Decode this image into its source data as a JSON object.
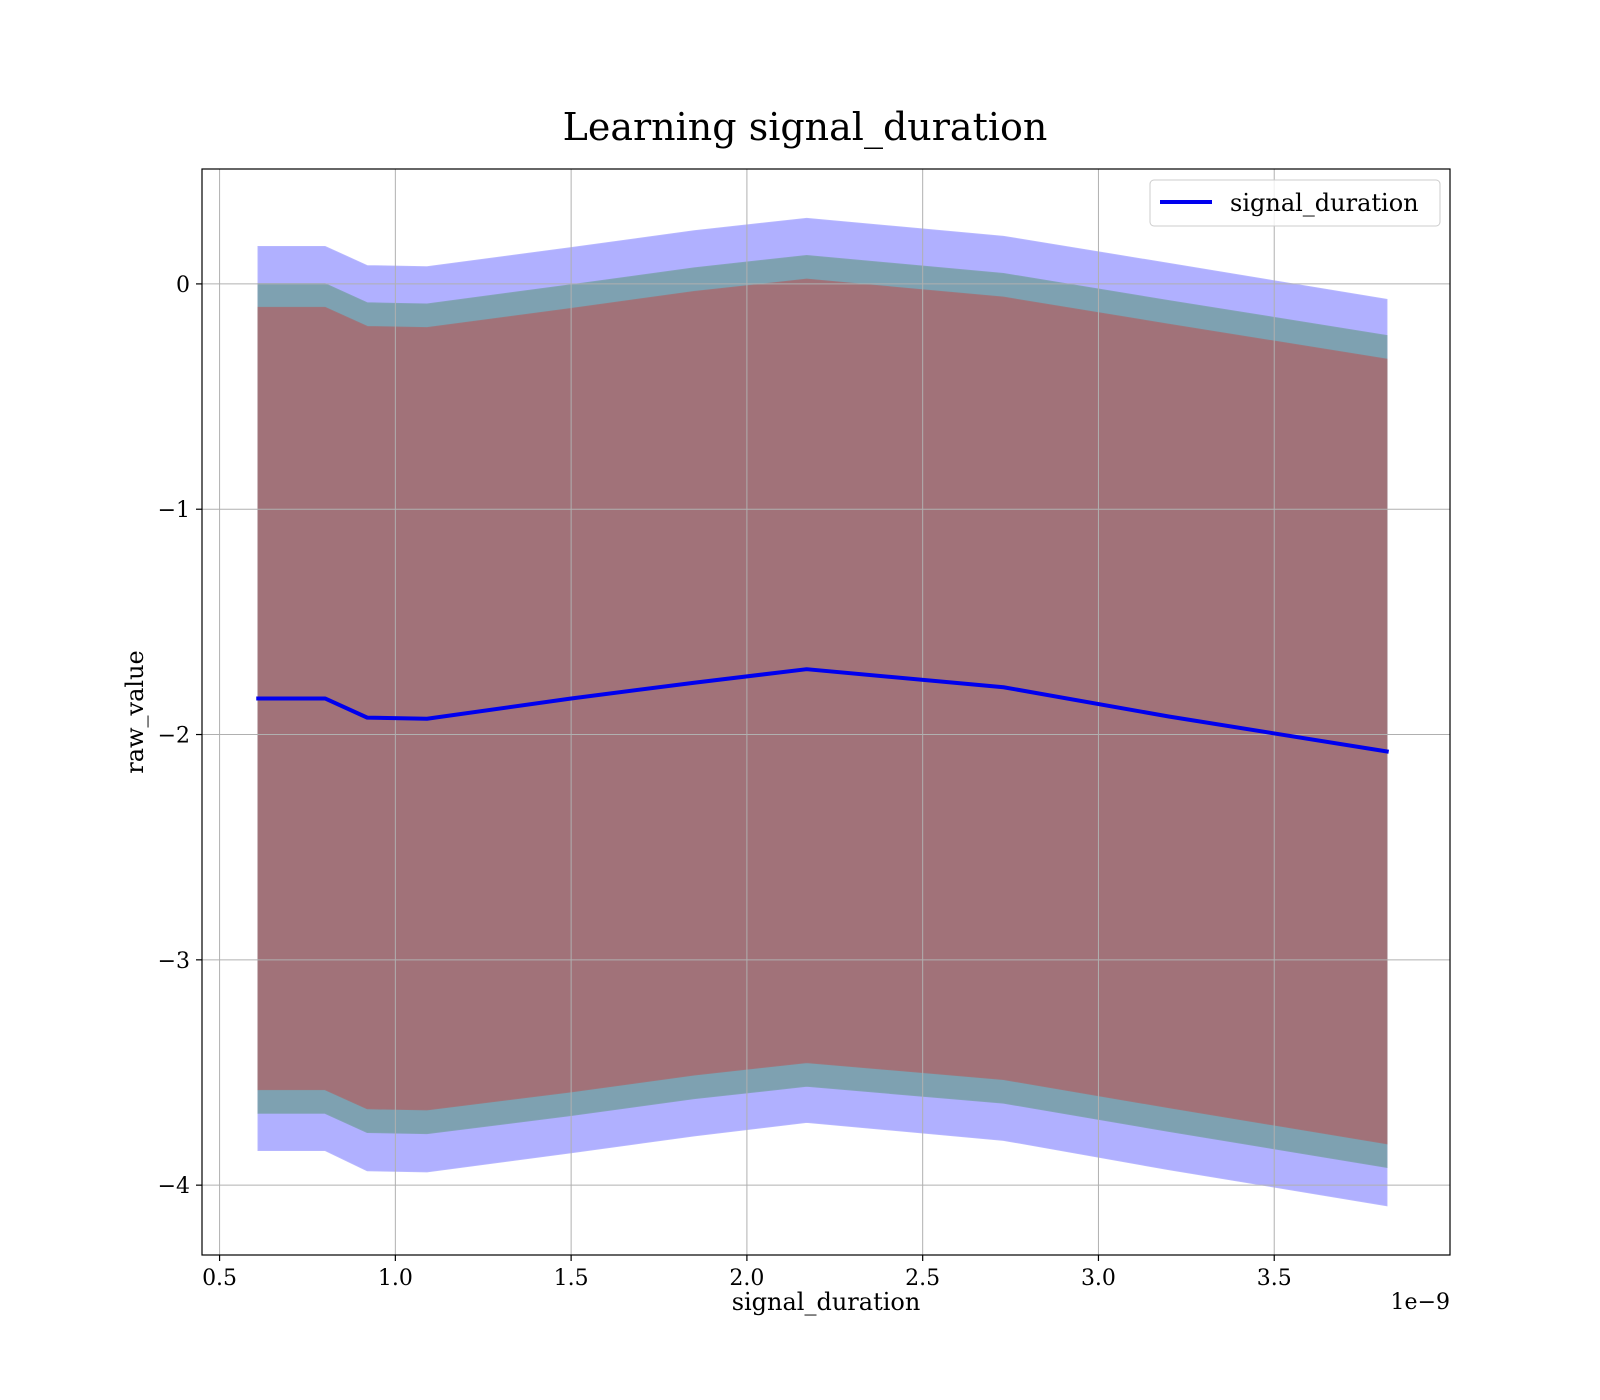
{
  "chart_data": {
    "type": "line",
    "title": "Learning signal_duration",
    "xlabel": "signal_duration",
    "ylabel": "raw_value",
    "x_offset_text": "1e−9",
    "xlim": [
      4.5e-10,
      4e-09
    ],
    "ylim": [
      -4.31,
      0.51
    ],
    "x_ticks": [
      5e-10,
      1e-09,
      1.5e-09,
      2e-09,
      2.5e-09,
      3e-09,
      3.5e-09
    ],
    "x_tick_labels": [
      "0.5",
      "1.0",
      "1.5",
      "2.0",
      "2.5",
      "3.0",
      "3.5"
    ],
    "y_ticks": [
      0,
      -1,
      -2,
      -3,
      -4
    ],
    "y_tick_labels": [
      "0",
      "−1",
      "−2",
      "−3",
      "−4"
    ],
    "grid": true,
    "legend_position": "top-right",
    "x": [
      6.1e-10,
      8e-10,
      9.2e-10,
      1.09e-09,
      1.5e-09,
      1.85e-09,
      2.17e-09,
      2.73e-09,
      3.2e-09,
      3.82e-09
    ],
    "series": [
      {
        "name": "signal_duration",
        "color": "#0000ee",
        "values": [
          -1.84,
          -1.84,
          -1.925,
          -1.93,
          -1.84,
          -1.77,
          -1.71,
          -1.79,
          -1.92,
          -2.075
        ]
      }
    ],
    "bands": [
      {
        "color": "#b0b0ff",
        "upper": [
          0.165,
          0.165,
          0.08,
          0.075,
          0.16,
          0.235,
          0.29,
          0.21,
          0.09,
          -0.07
        ],
        "lower": [
          -3.845,
          -3.845,
          -3.935,
          -3.94,
          -3.855,
          -3.78,
          -3.72,
          -3.8,
          -3.93,
          -4.09
        ]
      },
      {
        "color": "#7ea1b1",
        "upper": [
          0.0,
          0.0,
          -0.085,
          -0.09,
          -0.005,
          0.07,
          0.125,
          0.045,
          -0.075,
          -0.23
        ],
        "lower": [
          -3.68,
          -3.68,
          -3.765,
          -3.77,
          -3.69,
          -3.615,
          -3.56,
          -3.635,
          -3.76,
          -3.92
        ]
      },
      {
        "color": "#a17279",
        "upper": [
          -0.105,
          -0.105,
          -0.19,
          -0.195,
          -0.11,
          -0.035,
          0.02,
          -0.06,
          -0.18,
          -0.335
        ],
        "lower": [
          -3.575,
          -3.575,
          -3.66,
          -3.665,
          -3.585,
          -3.51,
          -3.455,
          -3.53,
          -3.655,
          -3.815
        ]
      }
    ]
  }
}
